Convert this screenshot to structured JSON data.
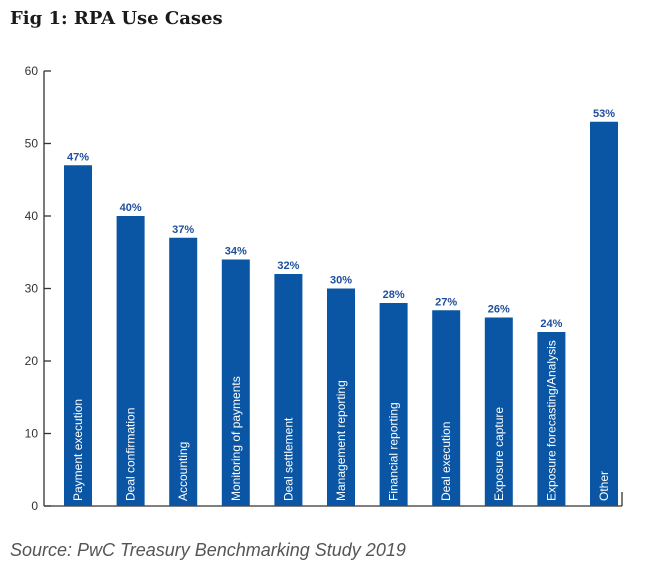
{
  "title": "Fig 1: RPA Use Cases",
  "source": "Source: PwC Treasury Benchmarking Study 2019",
  "chart_data": {
    "type": "bar",
    "title": "Fig 1: RPA Use Cases",
    "xlabel": "",
    "ylabel": "",
    "ylim": [
      0,
      60
    ],
    "yticks": [
      0,
      10,
      20,
      30,
      40,
      50,
      60
    ],
    "grid": false,
    "legend": "none",
    "categories": [
      "Payment execution",
      "Deal confirmation",
      "Accounting",
      "Monitoring of payments",
      "Deal settlement",
      "Management reporting",
      "Financial reporting",
      "Deal execution",
      "Exposure capture",
      "Exposure forecasting/Analysis",
      "Other"
    ],
    "values": [
      47,
      40,
      37,
      34,
      32,
      30,
      28,
      27,
      26,
      24,
      53
    ],
    "value_labels": [
      "47%",
      "40%",
      "37%",
      "34%",
      "32%",
      "30%",
      "28%",
      "27%",
      "26%",
      "24%",
      "53%"
    ],
    "colors": {
      "bar": "#0b56a4",
      "value_label": "#1f4e9c",
      "axis": "#333333"
    }
  }
}
